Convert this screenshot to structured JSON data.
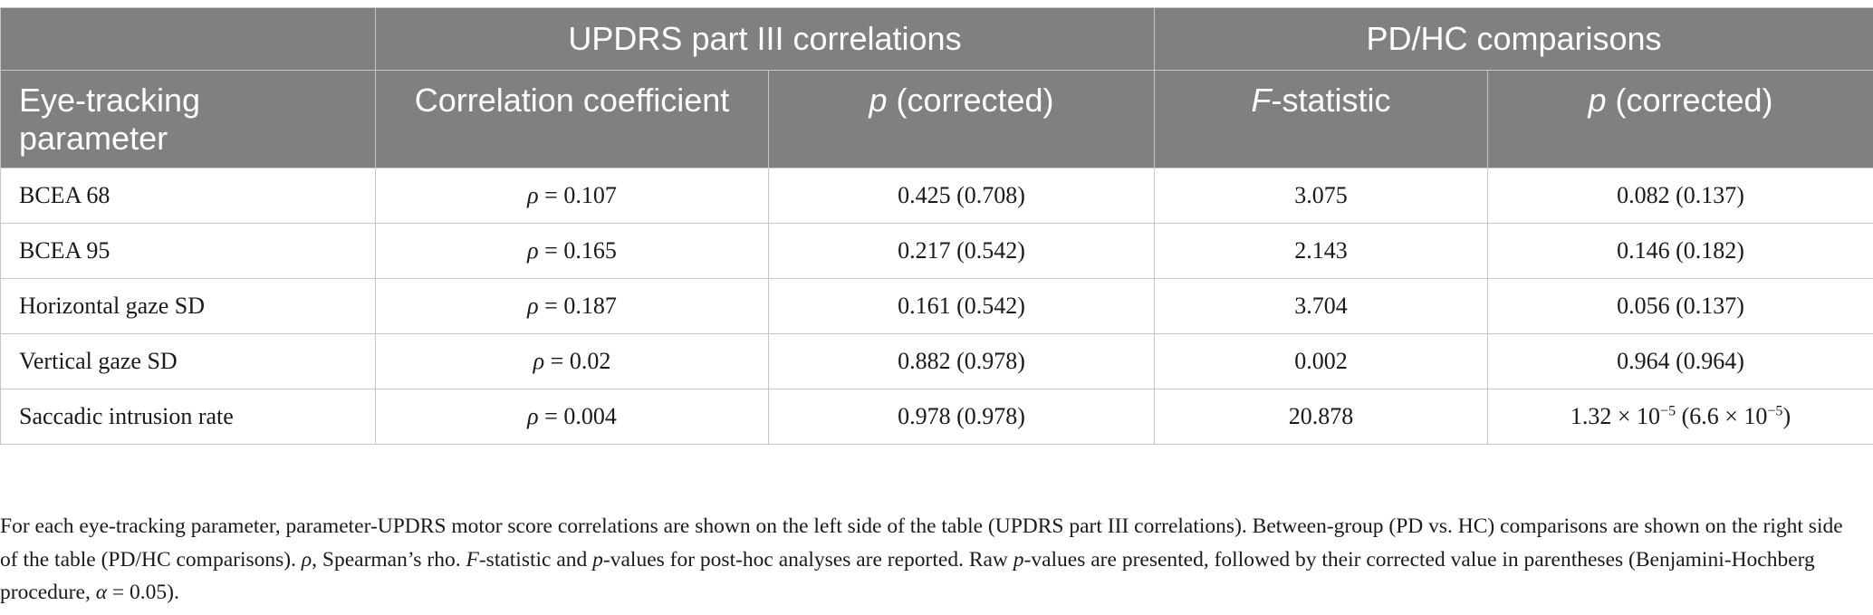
{
  "table": {
    "group_headers": {
      "empty": "",
      "updrs": "UPDRS part III correlations",
      "pdhc": "PD/HC comparisons"
    },
    "column_headers": {
      "parameter": "Eye-tracking parameter",
      "corr_coeff": "Correlation coefficient",
      "p_italic": "p",
      "p_rest": " (corrected)",
      "f_italic": "F",
      "f_rest": "-statistic",
      "p2_italic": "p",
      "p2_rest": " (corrected)"
    },
    "rows": [
      {
        "parameter": "BCEA 68",
        "rho_symbol": "ρ",
        "rho_value": " = 0.107",
        "p_updrs": "0.425 (0.708)",
        "f_stat": "3.075",
        "p_pdhc": "0.082 (0.137)"
      },
      {
        "parameter": "BCEA 95",
        "rho_symbol": "ρ",
        "rho_value": " = 0.165",
        "p_updrs": "0.217 (0.542)",
        "f_stat": "2.143",
        "p_pdhc": "0.146 (0.182)"
      },
      {
        "parameter": "Horizontal gaze SD",
        "rho_symbol": "ρ",
        "rho_value": " = 0.187",
        "p_updrs": "0.161 (0.542)",
        "f_stat": "3.704",
        "p_pdhc": "0.056 (0.137)"
      },
      {
        "parameter": "Vertical gaze SD",
        "rho_symbol": "ρ",
        "rho_value": " = 0.02",
        "p_updrs": "0.882 (0.978)",
        "f_stat": "0.002",
        "p_pdhc": "0.964 (0.964)"
      },
      {
        "parameter": "Saccadic intrusion rate",
        "rho_symbol": "ρ",
        "rho_value": " = 0.004",
        "p_updrs": "0.978 (0.978)",
        "f_stat": "20.878",
        "p_pdhc_a": "1.32 × 10",
        "p_pdhc_a_exp": "−5",
        "p_pdhc_b": " (6.6 × 10",
        "p_pdhc_b_exp": "−5",
        "p_pdhc_c": ")"
      }
    ]
  },
  "footnote": {
    "s1": "For each eye-tracking parameter, parameter-UPDRS motor score correlations are shown on the left side of the table (UPDRS part III correlations). Between-group (PD vs. HC) comparisons are shown on the right side of the table (PD/HC comparisons). ",
    "rho": "ρ",
    "s2": ", Spearman’s rho. ",
    "f": "F",
    "s3": "-statistic and ",
    "p1": "p",
    "s4": "-values for post-hoc analyses are reported. Raw ",
    "p2": "p",
    "s5": "-values are presented, followed by their corrected value in parentheses (Benjamini-Hochberg procedure, ",
    "alpha": "α",
    "s6": " = 0.05)."
  }
}
